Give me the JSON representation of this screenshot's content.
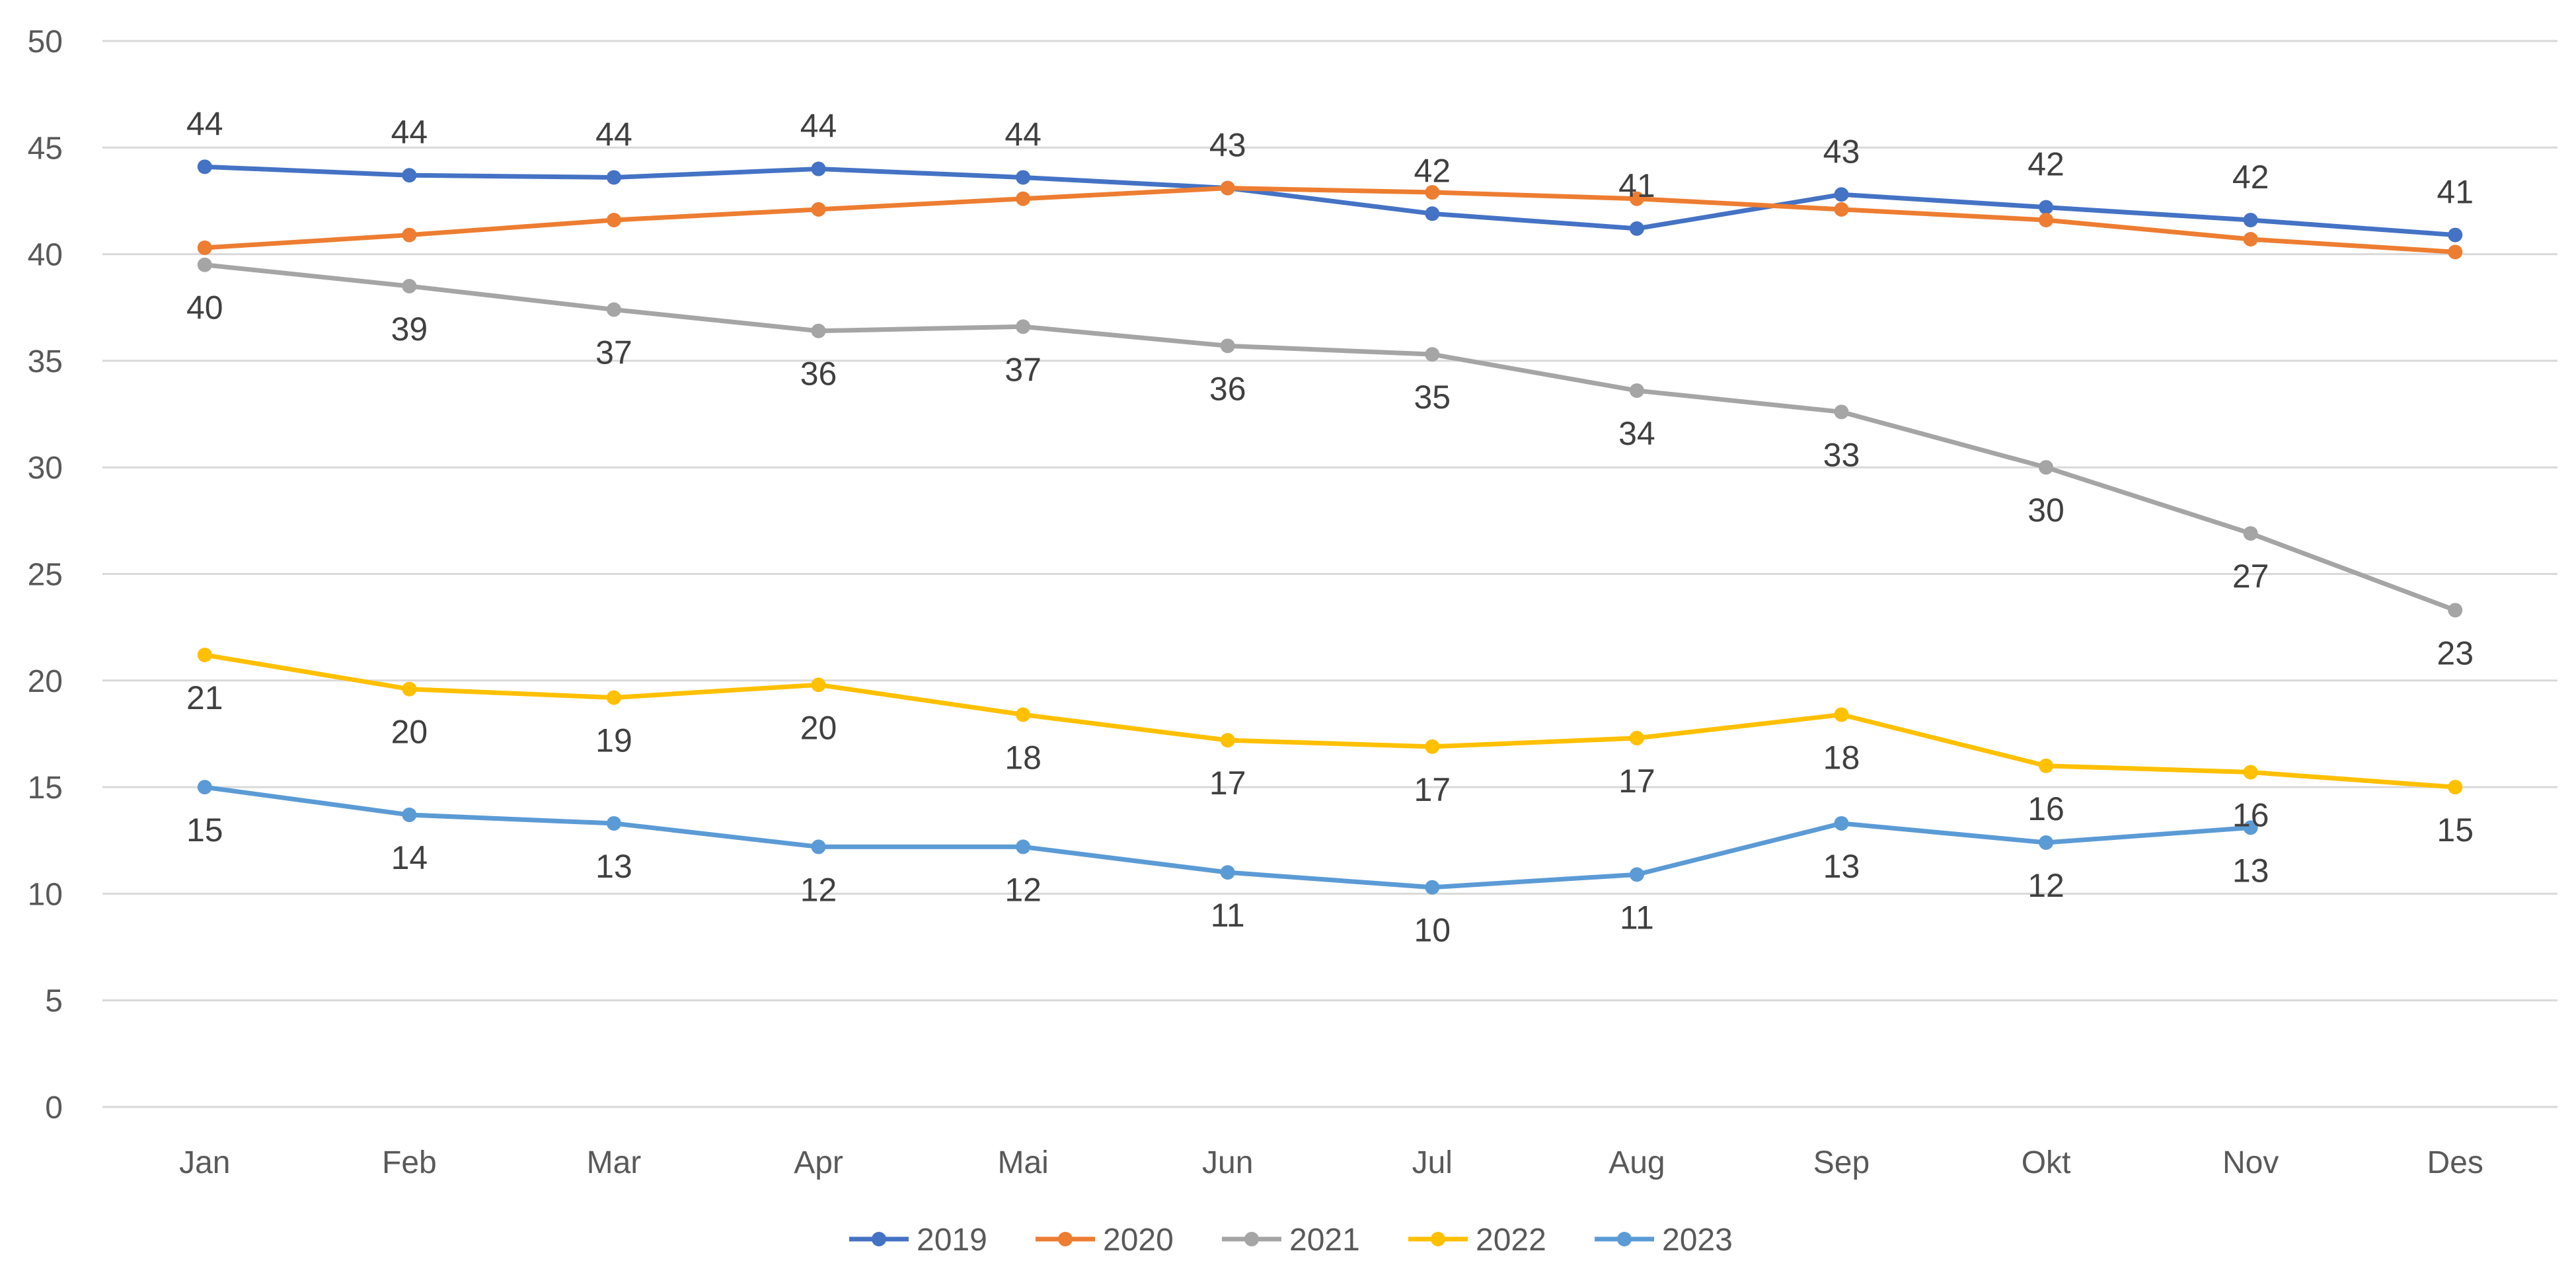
{
  "chart_data": {
    "type": "line",
    "categories": [
      "Jan",
      "Feb",
      "Mar",
      "Apr",
      "Mai",
      "Jun",
      "Jul",
      "Aug",
      "Sep",
      "Okt",
      "Nov",
      "Des"
    ],
    "ylim": [
      0,
      50
    ],
    "yticks": [
      0,
      5,
      10,
      15,
      20,
      25,
      30,
      35,
      40,
      45,
      50
    ],
    "grid": true,
    "legend": "bottom",
    "series": [
      {
        "name": "2019",
        "color": "#4472C4",
        "labels": "above",
        "values": [
          44.1,
          43.7,
          43.6,
          44.0,
          43.6,
          43.1,
          41.9,
          41.2,
          42.8,
          42.2,
          41.6,
          40.9
        ]
      },
      {
        "name": "2020",
        "color": "#ED7D31",
        "labels": "none",
        "values": [
          40.3,
          40.9,
          41.6,
          42.1,
          42.6,
          43.1,
          42.9,
          42.6,
          42.1,
          41.6,
          40.7,
          40.1
        ]
      },
      {
        "name": "2021",
        "color": "#A5A5A5",
        "labels": "below",
        "values": [
          39.5,
          38.5,
          37.4,
          36.4,
          36.6,
          35.7,
          35.3,
          33.6,
          32.6,
          30.0,
          26.9,
          23.3
        ]
      },
      {
        "name": "2022",
        "color": "#FFC000",
        "labels": "below",
        "values": [
          21.2,
          19.6,
          19.2,
          19.8,
          18.4,
          17.2,
          16.9,
          17.3,
          18.4,
          16.0,
          15.7,
          15.0
        ]
      },
      {
        "name": "2023",
        "color": "#5B9BD5",
        "labels": "below",
        "values": [
          15.0,
          13.7,
          13.3,
          12.2,
          12.2,
          11.0,
          10.3,
          10.9,
          13.3,
          12.4,
          13.1,
          null
        ]
      }
    ]
  }
}
